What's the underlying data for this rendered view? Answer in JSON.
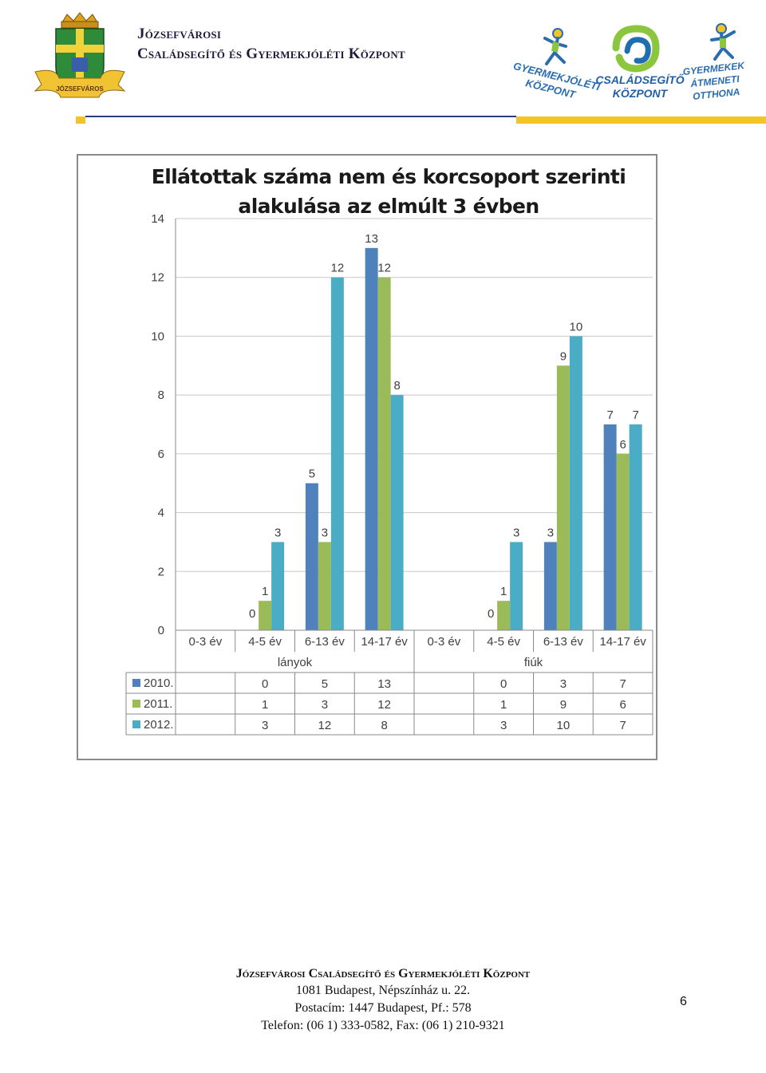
{
  "header": {
    "title_line1": "Józsefvárosi",
    "title_line2": "Családsegítő és Gyermekjóléti Központ",
    "crest_ribbon_text": "JÓZSEFVÁROS",
    "logos": {
      "gyermekjoleti": "GYERMEKJÓLÉTI KÖZPONT",
      "csaladsegito_line1": "CSALÁDSEGÍTŐ",
      "csaladsegito_line2": "KÖZPONT",
      "atmeneti_line1": "GYERMEKEK",
      "atmeneti_line2": "ÁTMENETI",
      "atmeneti_line3": "OTTHONA"
    },
    "accent_color": "#f4c326",
    "line_color": "#2a3e7a"
  },
  "chart_data": {
    "type": "bar",
    "title_line1": "Ellátottak száma nem és korcsoport szerinti",
    "title_line2": "alakulása az elmúlt 3 évben",
    "groups": [
      "lányok",
      "fiúk"
    ],
    "categories": [
      "0-3 év",
      "4-5 év",
      "6-13 év",
      "14-17 év",
      "0-3 év",
      "4-5 év",
      "6-13 év",
      "14-17 év"
    ],
    "series": [
      {
        "name": "2010.",
        "color": "#4f81bd",
        "values": [
          null,
          0,
          5,
          13,
          null,
          0,
          3,
          7
        ]
      },
      {
        "name": "2011.",
        "color": "#9bbb59",
        "values": [
          null,
          1,
          3,
          12,
          null,
          1,
          9,
          6
        ]
      },
      {
        "name": "2012.",
        "color": "#4bacc6",
        "values": [
          null,
          3,
          12,
          8,
          null,
          3,
          10,
          7
        ]
      }
    ],
    "yticks": [
      "0",
      "2",
      "4",
      "6",
      "8",
      "10",
      "12",
      "14"
    ],
    "ylim": [
      0,
      14
    ],
    "grid": true,
    "legend": "data-table"
  },
  "footer": {
    "org": "Józsefvárosi Családsegítő és Gyermekjóléti Központ",
    "address": "1081 Budapest, Népszínház u. 22.",
    "postal": "Postacím: 1447 Budapest, Pf.: 578",
    "phone": "Telefon: (06 1) 333-0582, Fax: (06 1) 210-9321"
  },
  "page_number": "6"
}
